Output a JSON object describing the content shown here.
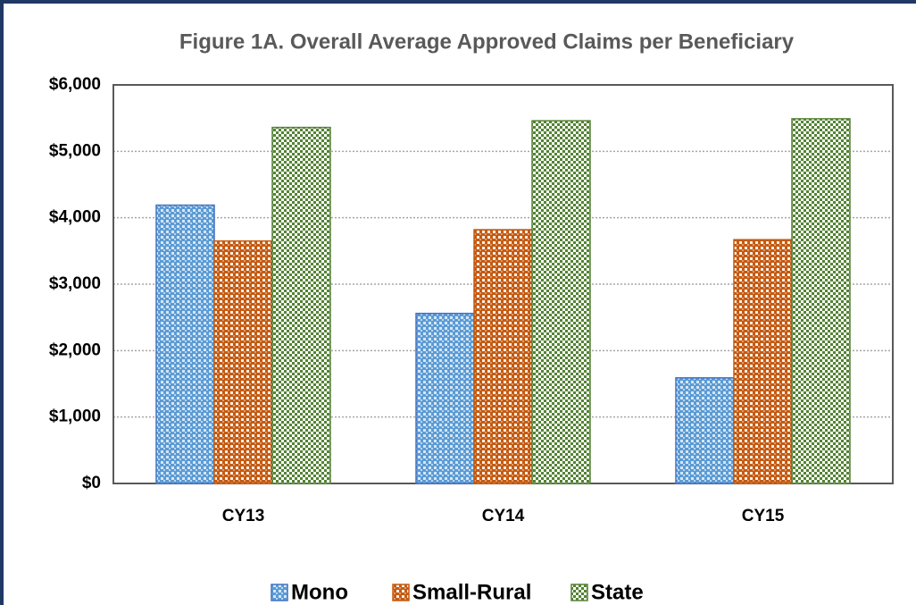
{
  "chart_data": {
    "type": "bar",
    "title": "Figure 1A. Overall Average Approved Claims per Beneficiary",
    "categories": [
      "CY13",
      "CY14",
      "CY15"
    ],
    "series": [
      {
        "name": "Mono",
        "color": "#4472c4",
        "values": [
          4190,
          2560,
          1590
        ]
      },
      {
        "name": "Small-Rural",
        "color": "#c55a11",
        "values": [
          3650,
          3820,
          3670
        ]
      },
      {
        "name": "State",
        "color": "#548235",
        "values": [
          5360,
          5460,
          5490
        ]
      }
    ],
    "ylim": [
      0,
      6000
    ],
    "yticks": [
      {
        "value": 0,
        "label": "$0"
      },
      {
        "value": 1000,
        "label": "$1,000"
      },
      {
        "value": 2000,
        "label": "$2,000"
      },
      {
        "value": 3000,
        "label": "$3,000"
      },
      {
        "value": 4000,
        "label": "$4,000"
      },
      {
        "value": 5000,
        "label": "$5,000"
      },
      {
        "value": 6000,
        "label": "$6,000"
      }
    ],
    "grid": true,
    "legend": "bottom"
  }
}
